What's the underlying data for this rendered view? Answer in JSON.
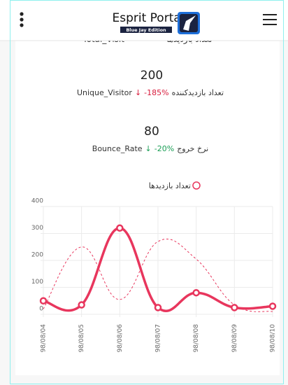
{
  "header": {
    "title": "Esprit Portal",
    "badge": "Blue Jay Edition"
  },
  "stats": {
    "partial": {
      "name": "Total_Visit",
      "label": "تعداد بازدیدها"
    },
    "items": [
      {
        "value": "200",
        "name": "Unique_Visitor",
        "arrow": "↓",
        "change": "-185%",
        "label": "تعداد بازدیدکننده",
        "color": "#d81b3c"
      },
      {
        "value": "80",
        "name": "Bounce_Rate",
        "arrow": "↓",
        "change": "-20%",
        "label": "نرخ خروج",
        "color": "#1a9e55"
      }
    ]
  },
  "chart_data": {
    "type": "line",
    "categories": [
      "98/08/04",
      "98/08/05",
      "98/08/06",
      "98/08/07",
      "98/08/08",
      "98/08/09",
      "98/08/10"
    ],
    "series": [
      {
        "name": "تعداد بازدیدها",
        "color": "#e8365d",
        "values": [
          50,
          35,
          320,
          25,
          80,
          25,
          30
        ]
      },
      {
        "color": "#e8365d",
        "dashed": true,
        "values": [
          20,
          250,
          55,
          270,
          205,
          35,
          10
        ]
      }
    ],
    "ylim": [
      0,
      400
    ],
    "yticks": [
      0,
      100,
      200,
      300,
      400
    ],
    "grid": true,
    "legend": "top"
  }
}
